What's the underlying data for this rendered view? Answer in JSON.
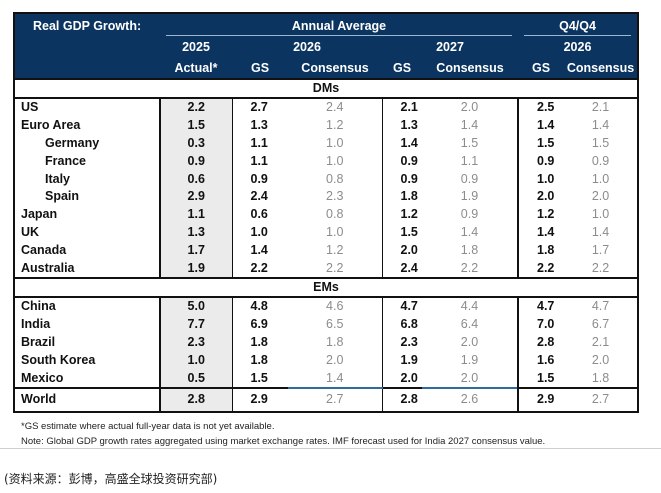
{
  "table": {
    "title": "Real GDP Growth:",
    "header_groups": {
      "annual": "Annual Average",
      "q4q4": "Q4/Q4"
    },
    "years": {
      "actual": "2025",
      "y2026": "2026",
      "y2027": "2027",
      "q4_2026": "2026"
    },
    "col_labels": {
      "actual": "Actual*",
      "gs": "GS",
      "consensus": "Consensus"
    },
    "sections": {
      "dms": "DMs",
      "ems": "EMs"
    },
    "dm_rows": [
      {
        "name": "US",
        "sub": false,
        "actual_2025": "2.2",
        "gs_2026": "2.7",
        "cons_2026": "2.4",
        "gs_2027": "2.1",
        "cons_2027": "2.0",
        "gs_q4": "2.5",
        "cons_q4": "2.1"
      },
      {
        "name": "Euro Area",
        "sub": false,
        "actual_2025": "1.5",
        "gs_2026": "1.3",
        "cons_2026": "1.2",
        "gs_2027": "1.3",
        "cons_2027": "1.4",
        "gs_q4": "1.4",
        "cons_q4": "1.4"
      },
      {
        "name": "Germany",
        "sub": true,
        "actual_2025": "0.3",
        "gs_2026": "1.1",
        "cons_2026": "1.0",
        "gs_2027": "1.4",
        "cons_2027": "1.5",
        "gs_q4": "1.5",
        "cons_q4": "1.5"
      },
      {
        "name": "France",
        "sub": true,
        "actual_2025": "0.9",
        "gs_2026": "1.1",
        "cons_2026": "1.0",
        "gs_2027": "0.9",
        "cons_2027": "1.1",
        "gs_q4": "0.9",
        "cons_q4": "0.9"
      },
      {
        "name": "Italy",
        "sub": true,
        "actual_2025": "0.6",
        "gs_2026": "0.9",
        "cons_2026": "0.8",
        "gs_2027": "0.9",
        "cons_2027": "0.9",
        "gs_q4": "1.0",
        "cons_q4": "1.0"
      },
      {
        "name": "Spain",
        "sub": true,
        "actual_2025": "2.9",
        "gs_2026": "2.4",
        "cons_2026": "2.3",
        "gs_2027": "1.8",
        "cons_2027": "1.9",
        "gs_q4": "2.0",
        "cons_q4": "2.0"
      },
      {
        "name": "Japan",
        "sub": false,
        "actual_2025": "1.1",
        "gs_2026": "0.6",
        "cons_2026": "0.8",
        "gs_2027": "1.2",
        "cons_2027": "0.9",
        "gs_q4": "1.2",
        "cons_q4": "1.0"
      },
      {
        "name": "UK",
        "sub": false,
        "actual_2025": "1.3",
        "gs_2026": "1.0",
        "cons_2026": "1.0",
        "gs_2027": "1.5",
        "cons_2027": "1.4",
        "gs_q4": "1.4",
        "cons_q4": "1.4"
      },
      {
        "name": "Canada",
        "sub": false,
        "actual_2025": "1.7",
        "gs_2026": "1.4",
        "cons_2026": "1.2",
        "gs_2027": "2.0",
        "cons_2027": "1.8",
        "gs_q4": "1.8",
        "cons_q4": "1.7"
      },
      {
        "name": "Australia",
        "sub": false,
        "actual_2025": "1.9",
        "gs_2026": "2.2",
        "cons_2026": "2.2",
        "gs_2027": "2.4",
        "cons_2027": "2.2",
        "gs_q4": "2.2",
        "cons_q4": "2.2"
      }
    ],
    "em_rows": [
      {
        "name": "China",
        "actual_2025": "5.0",
        "gs_2026": "4.8",
        "cons_2026": "4.6",
        "gs_2027": "4.7",
        "cons_2027": "4.4",
        "gs_q4": "4.7",
        "cons_q4": "4.7"
      },
      {
        "name": "India",
        "actual_2025": "7.7",
        "gs_2026": "6.9",
        "cons_2026": "6.5",
        "gs_2027": "6.8",
        "cons_2027": "6.4",
        "gs_q4": "7.0",
        "cons_q4": "6.7"
      },
      {
        "name": "Brazil",
        "actual_2025": "2.3",
        "gs_2026": "1.8",
        "cons_2026": "1.8",
        "gs_2027": "2.3",
        "cons_2027": "2.0",
        "gs_q4": "2.8",
        "cons_q4": "2.1"
      },
      {
        "name": "South Korea",
        "actual_2025": "1.0",
        "gs_2026": "1.8",
        "cons_2026": "2.0",
        "gs_2027": "1.9",
        "cons_2027": "1.9",
        "gs_q4": "1.6",
        "cons_q4": "2.0"
      },
      {
        "name": "Mexico",
        "actual_2025": "0.5",
        "gs_2026": "1.5",
        "cons_2026": "1.4",
        "gs_2027": "2.0",
        "cons_2027": "2.0",
        "gs_q4": "1.5",
        "cons_q4": "1.8"
      }
    ],
    "world": {
      "name": "World",
      "actual_2025": "2.8",
      "gs_2026": "2.9",
      "cons_2026": "2.7",
      "gs_2027": "2.8",
      "cons_2027": "2.6",
      "gs_q4": "2.9",
      "cons_q4": "2.7"
    }
  },
  "notes": {
    "footnote": "*GS estimate where actual full-year data is not yet available.",
    "note": "Note: Global GDP growth rates aggregated using market exchange rates. IMF forecast used for India 2027 consensus value."
  },
  "source": "(资料来源：彭博，高盛全球投资研究部)",
  "colors": {
    "header_bg": "#0b3560",
    "header_text": "#ffffff",
    "actual_col_bg": "#ebebeb",
    "consensus_text": "#8c8c8c",
    "world_divider_blue": "#2e6a9e"
  }
}
